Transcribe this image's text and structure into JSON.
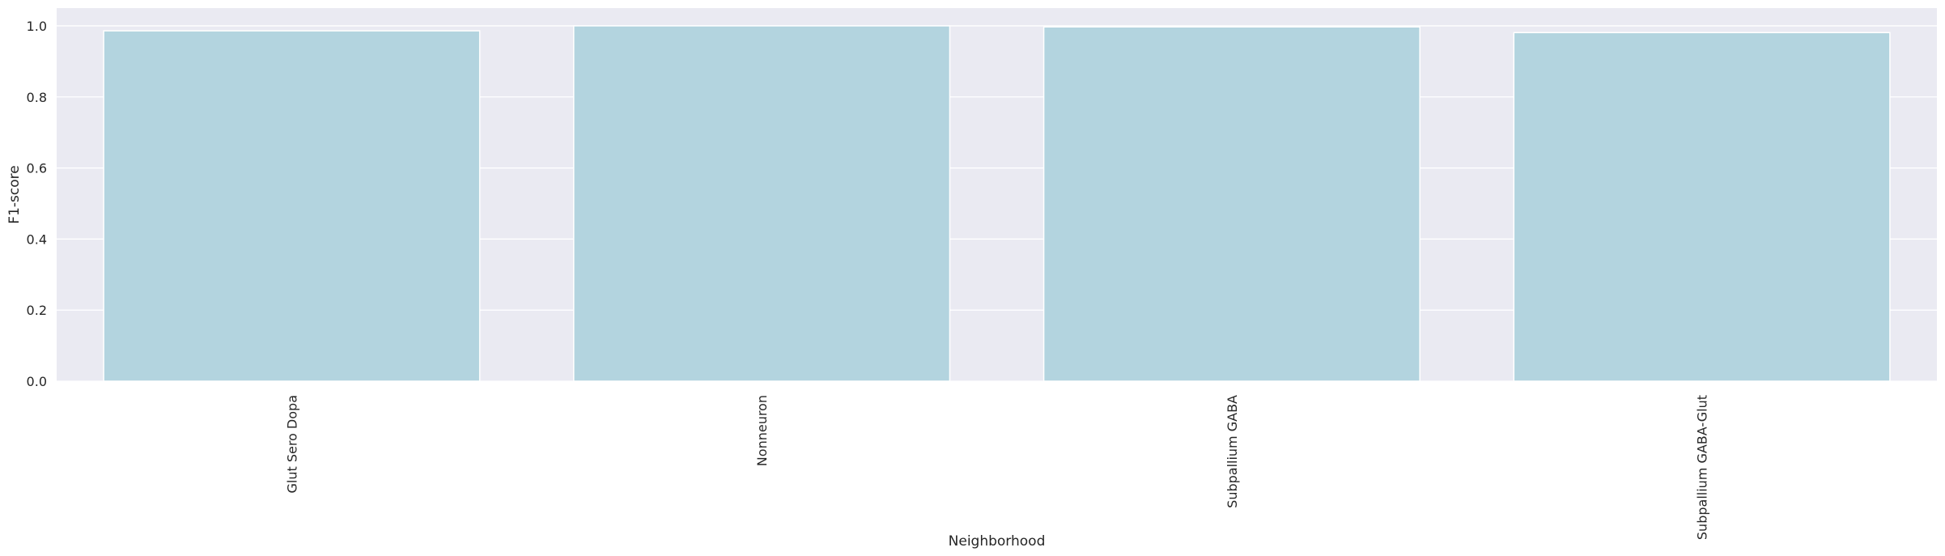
{
  "chart_data": {
    "type": "bar",
    "categories": [
      "Glut Sero Dopa",
      "Nonneuron",
      "Subpallium GABA",
      "Subpallium GABA-Glut"
    ],
    "values": [
      0.986,
      1.0,
      0.997,
      0.981
    ],
    "xlabel": "Neighborhood",
    "ylabel": "F1-score",
    "ylim": [
      0,
      1.05
    ],
    "yticks": [
      "0.0",
      "0.2",
      "0.4",
      "0.6",
      "0.8",
      "1.0"
    ],
    "grid": true,
    "colors": {
      "bar": "#b3d4df",
      "plot_background": "#eaeaf2",
      "grid": "#ffffff"
    }
  }
}
